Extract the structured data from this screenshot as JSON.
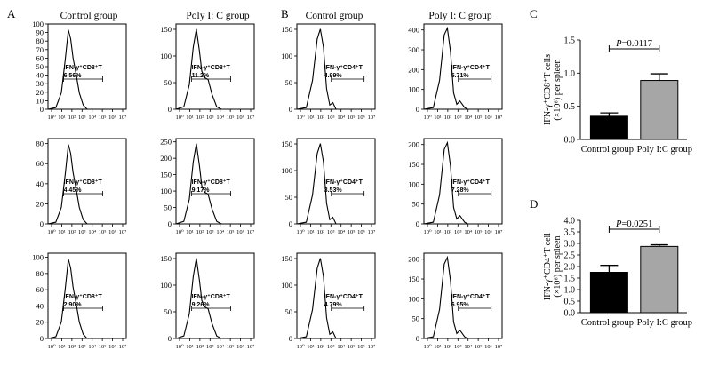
{
  "panel_labels": [
    "A",
    "B",
    "C",
    "D"
  ],
  "groups": {
    "control": "Control group",
    "polyic": "Poly I: C group"
  },
  "flow_axis": {
    "x_ticks": [
      "10⁰",
      "10¹",
      "10²",
      "10³",
      "10⁴",
      "10⁵",
      "10⁶",
      "10⁷"
    ]
  },
  "chart_data": [
    {
      "type": "histogram",
      "panel": "A",
      "marker": "IFN-γ⁺CD8⁺T",
      "columns": [
        "Control group",
        "Poly I: C group"
      ],
      "rows": [
        {
          "plots": [
            {
              "yticks": [
                0,
                10,
                20,
                30,
                40,
                50,
                60,
                70,
                80,
                90,
                100
              ],
              "ymax": 100,
              "percent": "6.56%"
            },
            {
              "yticks": [
                0,
                50,
                100,
                150
              ],
              "ymax": 160,
              "percent": "11.2%"
            }
          ]
        },
        {
          "plots": [
            {
              "yticks": [
                0,
                20,
                40,
                60,
                80
              ],
              "ymax": 85,
              "percent": "4.45%"
            },
            {
              "yticks": [
                0,
                50,
                100,
                150,
                200,
                250
              ],
              "ymax": 260,
              "percent": "9.17%"
            }
          ]
        },
        {
          "plots": [
            {
              "yticks": [
                0,
                20,
                40,
                60,
                80,
                100
              ],
              "ymax": 105,
              "percent": "2.90%"
            },
            {
              "yticks": [
                0,
                50,
                100,
                150
              ],
              "ymax": 160,
              "percent": "9.26%"
            }
          ]
        }
      ]
    },
    {
      "type": "histogram",
      "panel": "B",
      "marker": "IFN-γ⁺CD4⁺T",
      "columns": [
        "Control group",
        "Poly I: C group"
      ],
      "rows": [
        {
          "plots": [
            {
              "yticks": [
                0,
                50,
                100,
                150
              ],
              "ymax": 160,
              "percent": "4.99%"
            },
            {
              "yticks": [
                0,
                100,
                200,
                300,
                400
              ],
              "ymax": 430,
              "percent": "5.71%"
            }
          ]
        },
        {
          "plots": [
            {
              "yticks": [
                0,
                50,
                100,
                150
              ],
              "ymax": 160,
              "percent": "3.53%"
            },
            {
              "yticks": [
                0,
                50,
                100,
                150,
                200
              ],
              "ymax": 215,
              "percent": "7.28%"
            }
          ]
        },
        {
          "plots": [
            {
              "yticks": [
                0,
                50,
                100,
                150
              ],
              "ymax": 160,
              "percent": "4.79%"
            },
            {
              "yticks": [
                0,
                50,
                100,
                150,
                200
              ],
              "ymax": 215,
              "percent": "6.95%"
            }
          ]
        }
      ]
    },
    {
      "type": "bar",
      "panel": "C",
      "categories": [
        "Control group",
        "Poly I:C group"
      ],
      "values": [
        0.35,
        0.89
      ],
      "errors": [
        0.05,
        0.1
      ],
      "colors": [
        "#000000",
        "#a6a6a6"
      ],
      "ylabel": "IFN-γ⁺CD8⁺T cells (×10⁶) per spleen",
      "ylim": [
        0,
        1.5
      ],
      "yticks": [
        "0.0",
        "0.5",
        "1.0",
        "1.5"
      ],
      "annotation": "P=0.0117"
    },
    {
      "type": "bar",
      "panel": "D",
      "categories": [
        "Control group",
        "Poly I:C group"
      ],
      "values": [
        1.75,
        2.87
      ],
      "errors": [
        0.3,
        0.07
      ],
      "colors": [
        "#000000",
        "#a6a6a6"
      ],
      "ylabel": "IFN-γ⁺CD4⁺T cell (×10⁶) per spleen",
      "ylim": [
        0,
        4.0
      ],
      "yticks": [
        "0.0",
        "0.5",
        "1.0",
        "1.5",
        "2.0",
        "2.5",
        "3.0",
        "3.5",
        "4.0"
      ],
      "annotation": "P=0.0251"
    }
  ]
}
